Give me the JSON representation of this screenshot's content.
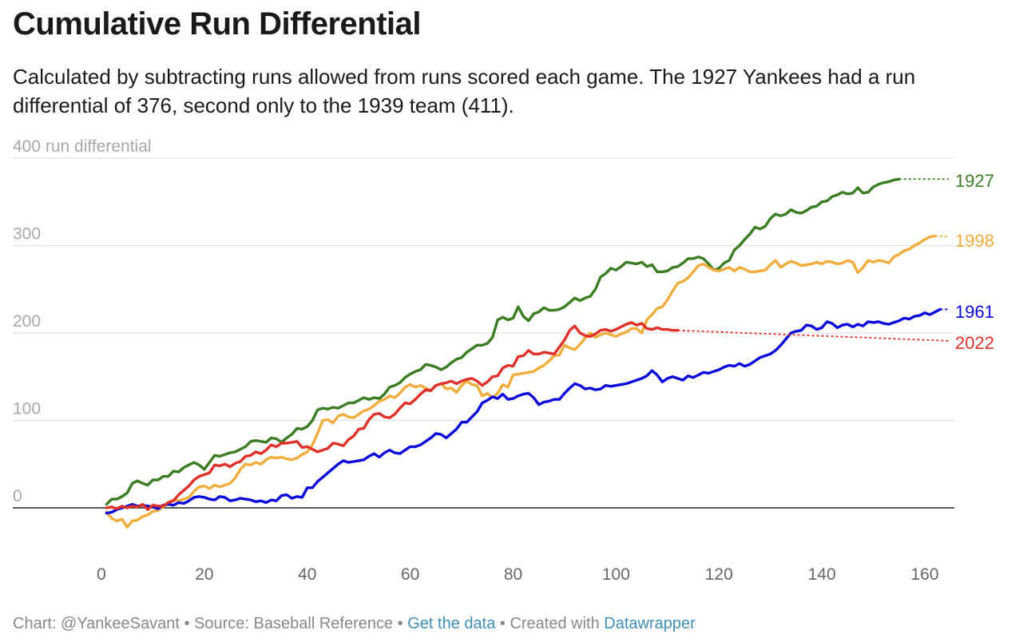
{
  "header": {
    "title": "Cumulative Run Differential",
    "subtitle": "Calculated by subtracting runs allowed from runs scored each game. The 1927 Yankees had a run differential of 376, second only to the 1939 team (411)."
  },
  "footer": {
    "credit": "Chart: @YankeeSavant",
    "sep1": " • ",
    "source": "Source: Baseball Reference",
    "sep2": " • ",
    "get_data": "Get the data",
    "sep3": " • ",
    "created_with": "Created with ",
    "tool": "Datawrapper"
  },
  "chart_data": {
    "type": "line",
    "ylabel": "run differential",
    "xlim": [
      0,
      165
    ],
    "ylim": [
      -60,
      400
    ],
    "y_ticks": [
      0,
      100,
      200,
      300,
      400
    ],
    "x_ticks": [
      0,
      20,
      40,
      60,
      80,
      100,
      120,
      140,
      160
    ],
    "grid": true,
    "legend": "end-of-line labels",
    "series": [
      {
        "name": "1927",
        "color": "#3a7d22",
        "projection_to": 376,
        "x": [
          1,
          2,
          3,
          4,
          5,
          6,
          7,
          8,
          9,
          10,
          11,
          12,
          13,
          14,
          15,
          16,
          17,
          18,
          19,
          20,
          21,
          22,
          23,
          24,
          25,
          26,
          27,
          28,
          29,
          30,
          31,
          32,
          33,
          34,
          35,
          36,
          37,
          38,
          39,
          40,
          41,
          42,
          43,
          44,
          45,
          46,
          47,
          48,
          49,
          50,
          51,
          52,
          53,
          54,
          55,
          56,
          57,
          58,
          59,
          60,
          61,
          62,
          63,
          64,
          65,
          66,
          67,
          68,
          69,
          70,
          71,
          72,
          73,
          74,
          75,
          76,
          77,
          78,
          79,
          80,
          81,
          82,
          83,
          84,
          85,
          86,
          87,
          88,
          89,
          90,
          91,
          92,
          93,
          94,
          95,
          96,
          97,
          98,
          99,
          100,
          101,
          102,
          103,
          104,
          105,
          106,
          107,
          108,
          109,
          110,
          111,
          112,
          113,
          114,
          115,
          116,
          117,
          118,
          119,
          120,
          121,
          122,
          123,
          124,
          125,
          126,
          127,
          128,
          129,
          130,
          131,
          132,
          133,
          134,
          135,
          136,
          137,
          138,
          139,
          140,
          141,
          142,
          143,
          144,
          145,
          146,
          147,
          148,
          149,
          150,
          151,
          152,
          153,
          154,
          155
        ],
        "y": [
          4,
          10,
          10,
          13,
          17,
          28,
          31,
          28,
          26,
          32,
          32,
          36,
          36,
          42,
          41,
          46,
          49,
          52,
          49,
          44,
          52,
          60,
          59,
          61,
          63,
          64,
          67,
          70,
          76,
          77,
          76,
          75,
          80,
          79,
          75,
          80,
          84,
          91,
          90,
          93,
          100,
          112,
          114,
          113,
          115,
          114,
          117,
          120,
          120,
          123,
          126,
          124,
          126,
          125,
          130,
          138,
          140,
          143,
          149,
          153,
          156,
          158,
          164,
          163,
          161,
          158,
          161,
          166,
          170,
          172,
          178,
          182,
          186,
          186,
          188,
          195,
          215,
          218,
          215,
          217,
          230,
          219,
          214,
          222,
          224,
          229,
          226,
          226,
          227,
          230,
          235,
          240,
          237,
          240,
          242,
          250,
          264,
          268,
          274,
          272,
          276,
          281,
          280,
          279,
          281,
          276,
          278,
          270,
          270,
          271,
          275,
          276,
          280,
          285,
          285,
          287,
          285,
          279,
          272,
          274,
          280,
          283,
          295,
          300,
          307,
          313,
          321,
          319,
          322,
          331,
          336,
          334,
          336,
          341,
          338,
          337,
          340,
          344,
          345,
          350,
          351,
          356,
          358,
          361,
          359,
          360,
          366,
          360,
          361,
          367,
          370,
          372,
          373,
          375,
          376
        ]
      },
      {
        "name": "1998",
        "color": "#f0ad3c",
        "projection_to": 310,
        "x": [
          1,
          2,
          3,
          4,
          5,
          6,
          7,
          8,
          9,
          10,
          11,
          12,
          13,
          14,
          15,
          16,
          17,
          18,
          19,
          20,
          21,
          22,
          23,
          24,
          25,
          26,
          27,
          28,
          29,
          30,
          31,
          32,
          33,
          34,
          35,
          36,
          37,
          38,
          39,
          40,
          41,
          42,
          43,
          44,
          45,
          46,
          47,
          48,
          49,
          50,
          51,
          52,
          53,
          54,
          55,
          56,
          57,
          58,
          59,
          60,
          61,
          62,
          63,
          64,
          65,
          66,
          67,
          68,
          69,
          70,
          71,
          72,
          73,
          74,
          75,
          76,
          77,
          78,
          79,
          80,
          81,
          82,
          83,
          84,
          85,
          86,
          87,
          88,
          89,
          90,
          91,
          92,
          93,
          94,
          95,
          96,
          97,
          98,
          99,
          100,
          101,
          102,
          103,
          104,
          105,
          106,
          107,
          108,
          109,
          110,
          111,
          112,
          113,
          114,
          115,
          116,
          117,
          118,
          119,
          120,
          121,
          122,
          123,
          124,
          125,
          126,
          127,
          128,
          129,
          130,
          131,
          132,
          133,
          134,
          135,
          136,
          137,
          138,
          139,
          140,
          141,
          142,
          143,
          144,
          145,
          146,
          147,
          148,
          149,
          150,
          151,
          152,
          153,
          154,
          155,
          156,
          157,
          158,
          159,
          160,
          161,
          162
        ],
        "y": [
          -5,
          -12,
          -15,
          -13,
          -22,
          -15,
          -14,
          -10,
          -8,
          -4,
          -3,
          1,
          6,
          9,
          8,
          10,
          12,
          19,
          24,
          25,
          22,
          26,
          24,
          26,
          28,
          34,
          44,
          50,
          49,
          52,
          50,
          55,
          58,
          57,
          58,
          56,
          55,
          57,
          61,
          64,
          72,
          85,
          100,
          101,
          97,
          105,
          107,
          104,
          103,
          107,
          111,
          113,
          117,
          122,
          124,
          128,
          126,
          131,
          138,
          141,
          138,
          140,
          137,
          134,
          140,
          142,
          136,
          137,
          132,
          140,
          145,
          141,
          140,
          128,
          131,
          126,
          131,
          141,
          138,
          152,
          153,
          154,
          155,
          156,
          160,
          163,
          168,
          174,
          175,
          186,
          183,
          181,
          187,
          194,
          200,
          195,
          198,
          200,
          198,
          196,
          199,
          201,
          205,
          205,
          200,
          215,
          221,
          228,
          230,
          238,
          248,
          257,
          259,
          263,
          270,
          277,
          279,
          275,
          272,
          271,
          273,
          275,
          271,
          275,
          273,
          270,
          270,
          271,
          272,
          278,
          283,
          275,
          279,
          282,
          280,
          277,
          278,
          279,
          281,
          279,
          282,
          281,
          279,
          280,
          283,
          281,
          269,
          275,
          283,
          281,
          283,
          282,
          280,
          287,
          290,
          294,
          296,
          300,
          303,
          307,
          310,
          311
        ]
      },
      {
        "name": "1961",
        "color": "#0a0adc",
        "projection_to": 227,
        "x": [
          1,
          2,
          3,
          4,
          5,
          6,
          7,
          8,
          9,
          10,
          11,
          12,
          13,
          14,
          15,
          16,
          17,
          18,
          19,
          20,
          21,
          22,
          23,
          24,
          25,
          26,
          27,
          28,
          29,
          30,
          31,
          32,
          33,
          34,
          35,
          36,
          37,
          38,
          39,
          40,
          41,
          42,
          43,
          44,
          45,
          46,
          47,
          48,
          49,
          50,
          51,
          52,
          53,
          54,
          55,
          56,
          57,
          58,
          59,
          60,
          61,
          62,
          63,
          64,
          65,
          66,
          67,
          68,
          69,
          70,
          71,
          72,
          73,
          74,
          75,
          76,
          77,
          78,
          79,
          80,
          81,
          82,
          83,
          84,
          85,
          86,
          87,
          88,
          89,
          90,
          91,
          92,
          93,
          94,
          95,
          96,
          97,
          98,
          99,
          100,
          101,
          102,
          103,
          104,
          105,
          106,
          107,
          108,
          109,
          110,
          111,
          112,
          113,
          114,
          115,
          116,
          117,
          118,
          119,
          120,
          121,
          122,
          123,
          124,
          125,
          126,
          127,
          128,
          129,
          130,
          131,
          132,
          133,
          134,
          135,
          136,
          137,
          138,
          139,
          140,
          141,
          142,
          143,
          144,
          145,
          146,
          147,
          148,
          149,
          150,
          151,
          152,
          153,
          154,
          155,
          156,
          157,
          158,
          159,
          160,
          161,
          162,
          163
        ],
        "y": [
          -6,
          -5,
          -2,
          0,
          2,
          4,
          2,
          3,
          2,
          1,
          -1,
          3,
          4,
          3,
          6,
          5,
          8,
          12,
          13,
          12,
          10,
          9,
          13,
          12,
          8,
          9,
          11,
          10,
          9,
          7,
          8,
          6,
          9,
          8,
          14,
          15,
          11,
          13,
          12,
          23,
          23,
          30,
          35,
          40,
          45,
          50,
          54,
          52,
          53,
          54,
          55,
          59,
          62,
          58,
          63,
          66,
          63,
          62,
          66,
          70,
          70,
          72,
          76,
          80,
          85,
          84,
          80,
          85,
          90,
          98,
          98,
          104,
          110,
          120,
          123,
          127,
          125,
          130,
          124,
          125,
          128,
          130,
          131,
          126,
          118,
          121,
          122,
          124,
          124,
          131,
          137,
          142,
          140,
          136,
          137,
          135,
          136,
          140,
          139,
          140,
          141,
          142,
          144,
          146,
          148,
          151,
          157,
          152,
          144,
          148,
          150,
          148,
          146,
          151,
          149,
          152,
          155,
          154,
          156,
          158,
          161,
          163,
          162,
          165,
          162,
          164,
          168,
          172,
          174,
          176,
          180,
          186,
          193,
          200,
          202,
          203,
          209,
          208,
          204,
          206,
          213,
          211,
          206,
          209,
          210,
          207,
          210,
          208,
          213,
          212,
          213,
          211,
          210,
          212,
          214,
          217,
          216,
          219,
          220,
          223,
          221,
          224,
          227
        ]
      },
      {
        "name": "2022",
        "color": "#e0302a",
        "projection_to": 191,
        "x": [
          1,
          2,
          3,
          4,
          5,
          6,
          7,
          8,
          9,
          10,
          11,
          12,
          13,
          14,
          15,
          16,
          17,
          18,
          19,
          20,
          21,
          22,
          23,
          24,
          25,
          26,
          27,
          28,
          29,
          30,
          31,
          32,
          33,
          34,
          35,
          36,
          37,
          38,
          39,
          40,
          41,
          42,
          43,
          44,
          45,
          46,
          47,
          48,
          49,
          50,
          51,
          52,
          53,
          54,
          55,
          56,
          57,
          58,
          59,
          60,
          61,
          62,
          63,
          64,
          65,
          66,
          67,
          68,
          69,
          70,
          71,
          72,
          73,
          74,
          75,
          76,
          77,
          78,
          79,
          80,
          81,
          82,
          83,
          84,
          85,
          86,
          87,
          88,
          89,
          90,
          91,
          92,
          93,
          94,
          95,
          96,
          97,
          98,
          99,
          100,
          101,
          102,
          103,
          104,
          105,
          106,
          107,
          108,
          109,
          110,
          111,
          112
        ],
        "y": [
          0,
          1,
          -1,
          2,
          0,
          2,
          1,
          4,
          -2,
          3,
          2,
          2,
          6,
          8,
          15,
          20,
          25,
          32,
          36,
          38,
          40,
          49,
          48,
          50,
          47,
          51,
          53,
          59,
          60,
          64,
          62,
          66,
          72,
          70,
          74,
          74,
          75,
          76,
          69,
          70,
          67,
          64,
          66,
          68,
          74,
          73,
          71,
          78,
          82,
          90,
          91,
          101,
          107,
          108,
          104,
          103,
          107,
          114,
          120,
          119,
          124,
          130,
          135,
          134,
          140,
          142,
          143,
          145,
          142,
          145,
          147,
          148,
          145,
          140,
          144,
          150,
          151,
          160,
          163,
          162,
          173,
          174,
          180,
          176,
          176,
          178,
          177,
          176,
          184,
          192,
          203,
          208,
          200,
          197,
          196,
          199,
          203,
          204,
          202,
          204,
          207,
          210,
          212,
          209,
          211,
          205,
          204,
          206,
          204,
          204,
          203,
          203
        ]
      }
    ]
  }
}
